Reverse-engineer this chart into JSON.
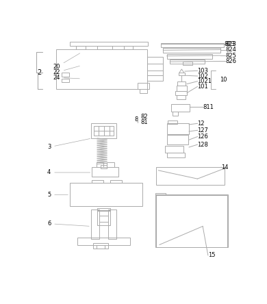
{
  "bg": "#ffffff",
  "lc": "#aaaaaa",
  "lc2": "#bbbbbb",
  "lw": 0.7,
  "fs": 6.0
}
